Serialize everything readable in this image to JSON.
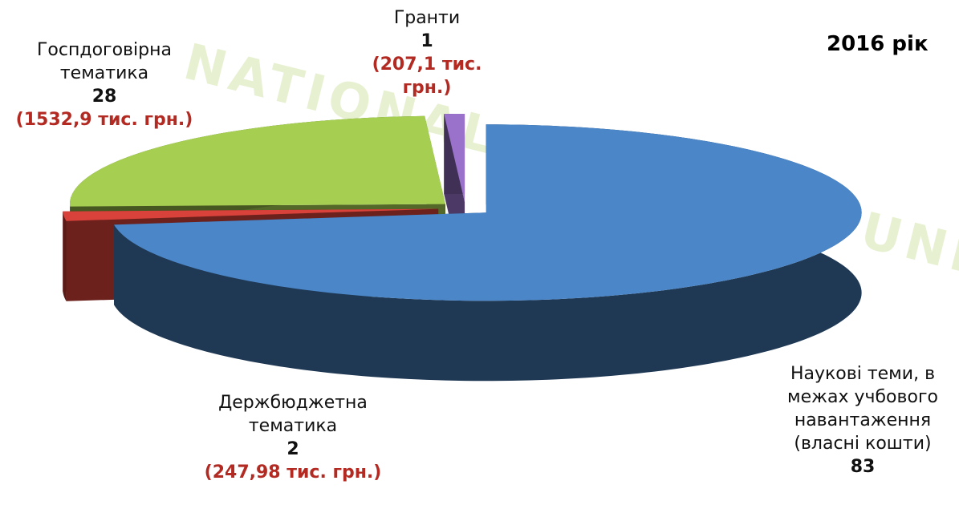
{
  "chart_data": {
    "type": "pie3d",
    "title": "2016 рік",
    "watermark": "NATIONAL AGRARIAN UNIV",
    "categories": [
      "Наукові теми, в межах учбового навантаження (власні кошти)",
      "Держбюджетна тематика",
      "Госпдоговірна тематика",
      "Гранти"
    ],
    "values": [
      83,
      2,
      28,
      1
    ],
    "colors": [
      "#4a86c8",
      "#d9423a",
      "#a6cf52",
      "#9a72cc"
    ],
    "annotations": [
      {
        "category": "Держбюджетна тематика",
        "text": "(247,98 тис. грн.)"
      },
      {
        "category": "Госпдоговірна тематика",
        "text": "(1532,9 тис. грн.)"
      },
      {
        "category": "Гранти",
        "text": "(207,1 тис. грн.)"
      }
    ]
  }
}
